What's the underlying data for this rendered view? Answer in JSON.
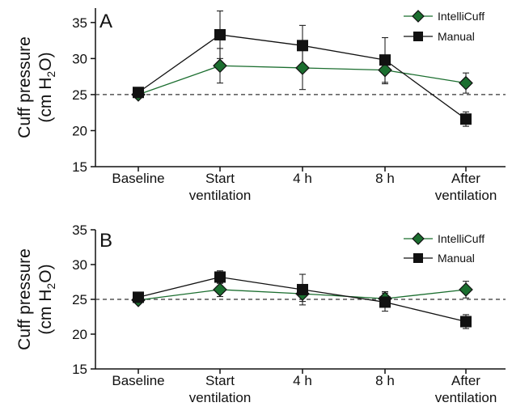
{
  "colors": {
    "intellicuff": "#1b6e2f",
    "manual": "#111111",
    "reference": "#333333"
  },
  "chart_data": [
    {
      "type": "line",
      "panel_label": "A",
      "ylabel_line1": "Cuff pressure",
      "ylabel_line2_prefix": "(cm H",
      "ylabel_line2_sub": "2",
      "ylabel_line2_suffix": "O)",
      "ylim": [
        15,
        37
      ],
      "yticks": [
        "15",
        "20",
        "25",
        "30",
        "35"
      ],
      "reference_line": 25,
      "legend_position": "top-right",
      "categories": [
        [
          "Baseline"
        ],
        [
          "Start",
          "ventilation"
        ],
        [
          "4 h"
        ],
        [
          "8 h"
        ],
        [
          "After",
          "ventilation"
        ]
      ],
      "series": [
        {
          "name": "IntelliCuff",
          "marker": "diamond",
          "values": [
            25.0,
            29.0,
            28.7,
            28.4,
            26.6
          ],
          "errors": [
            0.3,
            2.4,
            3.0,
            1.9,
            1.4
          ]
        },
        {
          "name": "Manual",
          "marker": "square",
          "values": [
            25.3,
            33.3,
            31.8,
            29.8,
            21.6
          ],
          "errors": [
            0.4,
            3.3,
            2.8,
            3.1,
            1.0
          ]
        }
      ]
    },
    {
      "type": "line",
      "panel_label": "B",
      "ylabel_line1": "Cuff pressure",
      "ylabel_line2_prefix": "(cm H",
      "ylabel_line2_sub": "2",
      "ylabel_line2_suffix": "O)",
      "ylim": [
        15,
        35
      ],
      "yticks": [
        "15",
        "20",
        "25",
        "30",
        "35"
      ],
      "reference_line": 25,
      "legend_position": "top-right",
      "categories": [
        [
          "Baseline"
        ],
        [
          "Start",
          "ventilation"
        ],
        [
          "4 h"
        ],
        [
          "8 h"
        ],
        [
          "After",
          "ventilation"
        ]
      ],
      "series": [
        {
          "name": "IntelliCuff",
          "marker": "diamond",
          "values": [
            24.9,
            26.4,
            25.8,
            25.1,
            26.4
          ],
          "errors": [
            0.3,
            1.0,
            1.1,
            1.0,
            1.2
          ]
        },
        {
          "name": "Manual",
          "marker": "square",
          "values": [
            25.3,
            28.2,
            26.4,
            24.6,
            21.8
          ],
          "errors": [
            0.4,
            0.9,
            2.2,
            1.3,
            1.0
          ]
        }
      ]
    }
  ]
}
